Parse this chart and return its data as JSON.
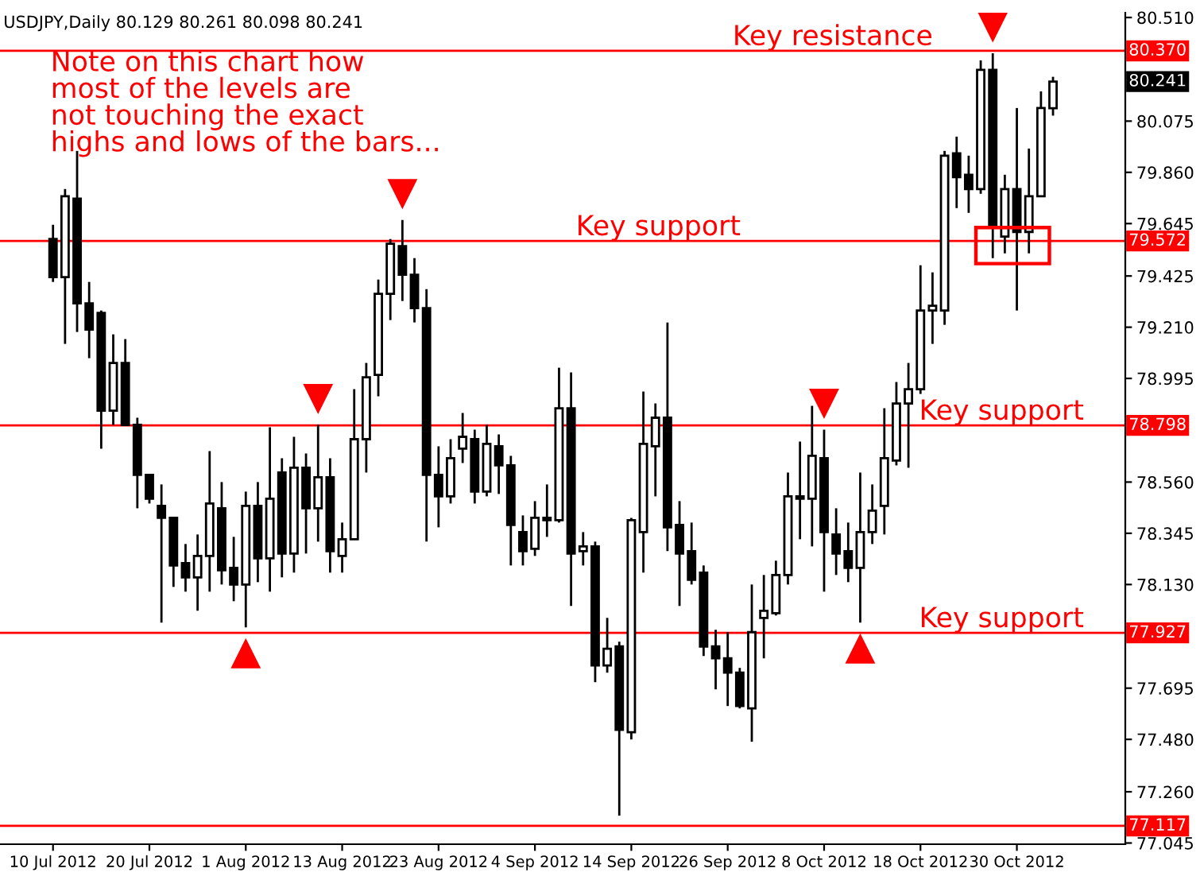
{
  "chart_data": {
    "type": "candlestick",
    "title": "USDJPY,Daily 80.129 80.261 80.098 80.241",
    "categories": [
      "10 Jul 2012",
      null,
      null,
      null,
      null,
      null,
      null,
      null,
      "20 Jul 2012",
      null,
      null,
      null,
      null,
      null,
      null,
      null,
      "1 Aug 2012",
      null,
      null,
      null,
      null,
      null,
      null,
      null,
      "13 Aug 2012",
      null,
      null,
      null,
      null,
      null,
      null,
      null,
      "23 Aug 2012",
      null,
      null,
      null,
      null,
      null,
      null,
      null,
      "4 Sep 2012",
      null,
      null,
      null,
      null,
      null,
      null,
      null,
      "14 Sep 2012",
      null,
      null,
      null,
      null,
      null,
      null,
      null,
      "26 Sep 2012",
      null,
      null,
      null,
      null,
      null,
      null,
      null,
      "8 Oct 2012",
      null,
      null,
      null,
      null,
      null,
      null,
      null,
      "18 Oct 2012",
      null,
      null,
      null,
      null,
      null,
      null,
      null,
      "30 Oct 2012",
      null,
      null,
      null
    ],
    "ohlc": [
      [
        79.58,
        79.64,
        79.4,
        79.42
      ],
      [
        79.42,
        79.79,
        79.14,
        79.76
      ],
      [
        79.75,
        79.95,
        79.19,
        79.31
      ],
      [
        79.31,
        79.4,
        79.08,
        79.2
      ],
      [
        79.27,
        79.28,
        78.7,
        78.86
      ],
      [
        78.86,
        79.18,
        78.8,
        79.06
      ],
      [
        79.06,
        79.16,
        78.8,
        78.8
      ],
      [
        78.8,
        78.83,
        78.45,
        78.59
      ],
      [
        78.59,
        78.59,
        78.47,
        78.49
      ],
      [
        78.46,
        78.55,
        77.97,
        78.41
      ],
      [
        78.41,
        78.41,
        78.12,
        78.21
      ],
      [
        78.22,
        78.3,
        78.1,
        78.16
      ],
      [
        78.16,
        78.34,
        78.02,
        78.25
      ],
      [
        78.25,
        78.69,
        78.1,
        78.47
      ],
      [
        78.45,
        78.56,
        78.13,
        78.19
      ],
      [
        78.2,
        78.33,
        78.06,
        78.13
      ],
      [
        78.13,
        78.52,
        77.95,
        78.46
      ],
      [
        78.46,
        78.56,
        78.14,
        78.24
      ],
      [
        78.24,
        78.79,
        78.1,
        78.49
      ],
      [
        78.6,
        78.66,
        78.16,
        78.26
      ],
      [
        78.26,
        78.75,
        78.18,
        78.62
      ],
      [
        78.62,
        78.68,
        78.26,
        78.45
      ],
      [
        78.45,
        78.8,
        78.31,
        78.58
      ],
      [
        78.58,
        78.66,
        78.18,
        78.27
      ],
      [
        78.25,
        78.39,
        78.18,
        78.32
      ],
      [
        78.32,
        78.95,
        78.32,
        78.74
      ],
      [
        78.74,
        79.06,
        78.6,
        79.0
      ],
      [
        79.01,
        79.41,
        78.92,
        79.35
      ],
      [
        79.35,
        79.58,
        79.24,
        79.56
      ],
      [
        79.55,
        79.66,
        79.32,
        79.43
      ],
      [
        79.43,
        79.5,
        79.23,
        79.29
      ],
      [
        79.29,
        79.37,
        78.31,
        78.59
      ],
      [
        78.59,
        78.71,
        78.37,
        78.5
      ],
      [
        78.5,
        78.74,
        78.47,
        78.66
      ],
      [
        78.7,
        78.85,
        78.64,
        78.75
      ],
      [
        78.74,
        78.78,
        78.47,
        78.52
      ],
      [
        78.52,
        78.8,
        78.5,
        78.72
      ],
      [
        78.71,
        78.76,
        78.51,
        78.63
      ],
      [
        78.63,
        78.67,
        78.21,
        78.38
      ],
      [
        78.35,
        78.42,
        78.21,
        78.27
      ],
      [
        78.28,
        78.48,
        78.25,
        78.41
      ],
      [
        78.41,
        78.55,
        78.33,
        78.4
      ],
      [
        78.4,
        79.04,
        78.39,
        78.87
      ],
      [
        78.87,
        79.02,
        78.04,
        78.26
      ],
      [
        78.27,
        78.35,
        78.21,
        78.29
      ],
      [
        78.29,
        78.31,
        77.72,
        77.79
      ],
      [
        77.79,
        77.99,
        77.76,
        77.86
      ],
      [
        77.87,
        77.89,
        77.16,
        77.52
      ],
      [
        77.51,
        78.41,
        77.48,
        78.4
      ],
      [
        78.35,
        78.94,
        78.18,
        78.72
      ],
      [
        78.71,
        78.89,
        78.5,
        78.83
      ],
      [
        78.83,
        79.23,
        78.27,
        78.37
      ],
      [
        78.38,
        78.48,
        78.04,
        78.26
      ],
      [
        78.27,
        78.39,
        78.13,
        78.15
      ],
      [
        78.18,
        78.21,
        77.83,
        77.87
      ],
      [
        77.87,
        77.94,
        77.69,
        77.82
      ],
      [
        77.82,
        77.93,
        77.62,
        77.76
      ],
      [
        77.76,
        77.78,
        77.61,
        77.62
      ],
      [
        77.61,
        78.13,
        77.47,
        77.93
      ],
      [
        77.99,
        78.17,
        77.82,
        78.02
      ],
      [
        78.01,
        78.23,
        78.0,
        78.17
      ],
      [
        78.17,
        78.6,
        78.13,
        78.5
      ],
      [
        78.5,
        78.73,
        78.32,
        78.49
      ],
      [
        78.49,
        78.88,
        78.29,
        78.67
      ],
      [
        78.66,
        78.78,
        78.1,
        78.35
      ],
      [
        78.34,
        78.45,
        78.17,
        78.26
      ],
      [
        78.27,
        78.39,
        78.14,
        78.2
      ],
      [
        78.2,
        78.6,
        77.97,
        78.35
      ],
      [
        78.35,
        78.55,
        78.3,
        78.44
      ],
      [
        78.46,
        78.87,
        78.34,
        78.66
      ],
      [
        78.65,
        78.98,
        78.63,
        78.89
      ],
      [
        78.89,
        79.06,
        78.62,
        78.95
      ],
      [
        78.95,
        79.47,
        78.93,
        79.28
      ],
      [
        79.28,
        79.44,
        79.14,
        79.3
      ],
      [
        79.28,
        79.95,
        79.22,
        79.93
      ],
      [
        79.94,
        80.01,
        79.71,
        79.84
      ],
      [
        79.85,
        79.93,
        79.69,
        79.79
      ],
      [
        79.79,
        80.33,
        79.77,
        80.29
      ],
      [
        80.29,
        80.36,
        79.5,
        79.63
      ],
      [
        79.59,
        79.85,
        79.52,
        79.79
      ],
      [
        79.79,
        80.13,
        79.28,
        79.61
      ],
      [
        79.61,
        79.96,
        79.52,
        79.76
      ],
      [
        79.76,
        80.2,
        79.76,
        80.13
      ],
      [
        80.129,
        80.261,
        80.098,
        80.241
      ]
    ],
    "ylim": [
      77.04,
      80.53
    ],
    "yticks": [
      {
        "value": 80.51,
        "label": "80.510"
      },
      {
        "value": 80.075,
        "label": "80.075"
      },
      {
        "value": 79.86,
        "label": "79.860"
      },
      {
        "value": 79.645,
        "label": "79.645"
      },
      {
        "value": 79.425,
        "label": "79.425"
      },
      {
        "value": 79.21,
        "label": "79.210"
      },
      {
        "value": 78.995,
        "label": "78.995"
      },
      {
        "value": 78.56,
        "label": "78.560"
      },
      {
        "value": 78.345,
        "label": "78.345"
      },
      {
        "value": 78.13,
        "label": "78.130"
      },
      {
        "value": 77.695,
        "label": "77.695"
      },
      {
        "value": 77.48,
        "label": "77.480"
      },
      {
        "value": 77.26,
        "label": "77.260"
      },
      {
        "value": 77.045,
        "label": "77.045"
      }
    ],
    "ref_lines": [
      {
        "axis": "y",
        "value": 80.37,
        "label": "80.370",
        "color": "#ff0000"
      },
      {
        "axis": "y",
        "value": 79.572,
        "label": "79.572",
        "color": "#ff0000"
      },
      {
        "axis": "y",
        "value": 78.798,
        "label": "78.798",
        "color": "#ff0000"
      },
      {
        "axis": "y",
        "value": 77.927,
        "label": "77.927",
        "color": "#ff0000"
      },
      {
        "axis": "y",
        "value": 77.117,
        "label": "77.117",
        "color": "#ff0000"
      }
    ],
    "annotations": [
      "Note on this chart how\nmost of the levels are\nnot touching the exact\nhighs and lows of the bars...",
      {
        "text": "Key resistance",
        "y": 80.37
      },
      {
        "text": "Key support",
        "y": 79.572
      },
      {
        "text": "Key support",
        "y": 78.798
      },
      {
        "text": "Key support",
        "y": 77.927
      },
      "80.241"
    ],
    "grid": false,
    "legend": false
  }
}
